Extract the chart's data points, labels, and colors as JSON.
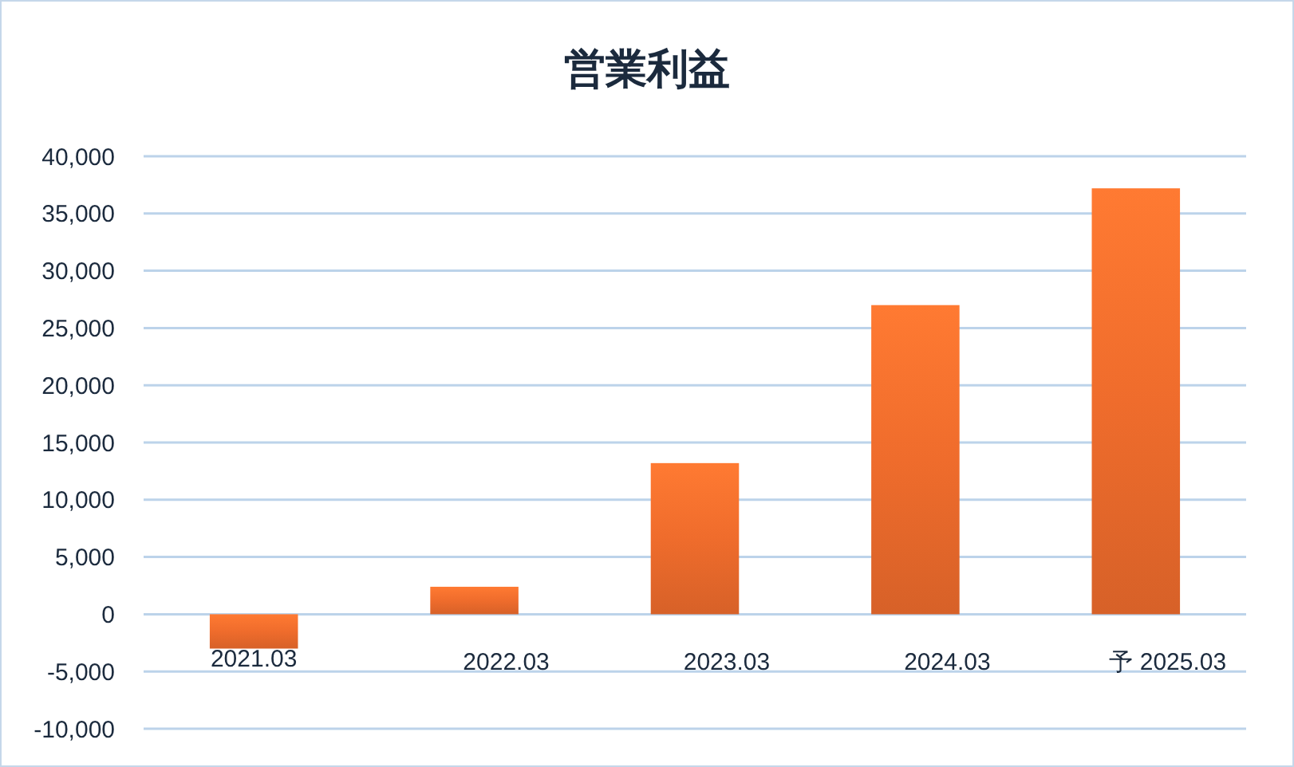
{
  "chart_data": {
    "type": "bar",
    "title": "営業利益",
    "categories": [
      "2021.03",
      "2022.03",
      "2023.03",
      "2024.03",
      "予 2025.03"
    ],
    "values": [
      -3000,
      2400,
      13200,
      27000,
      37200
    ],
    "color": "#ef6c2c",
    "ylim": [
      -10000,
      40000
    ],
    "yticks": [
      {
        "value": -10000,
        "label": "-10,000"
      },
      {
        "value": -5000,
        "label": "-5,000"
      },
      0,
      {
        "value": 5000,
        "label": "5,000"
      },
      {
        "value": 10000,
        "label": "10,000"
      },
      {
        "value": 15000,
        "label": "15,000"
      },
      {
        "value": 20000,
        "label": "20,000"
      },
      {
        "value": 25000,
        "label": "25,000"
      },
      {
        "value": 30000,
        "label": "30,000"
      },
      {
        "value": 35000,
        "label": "35,000"
      },
      {
        "value": 40000,
        "label": "40,000"
      }
    ],
    "grid": "y"
  }
}
